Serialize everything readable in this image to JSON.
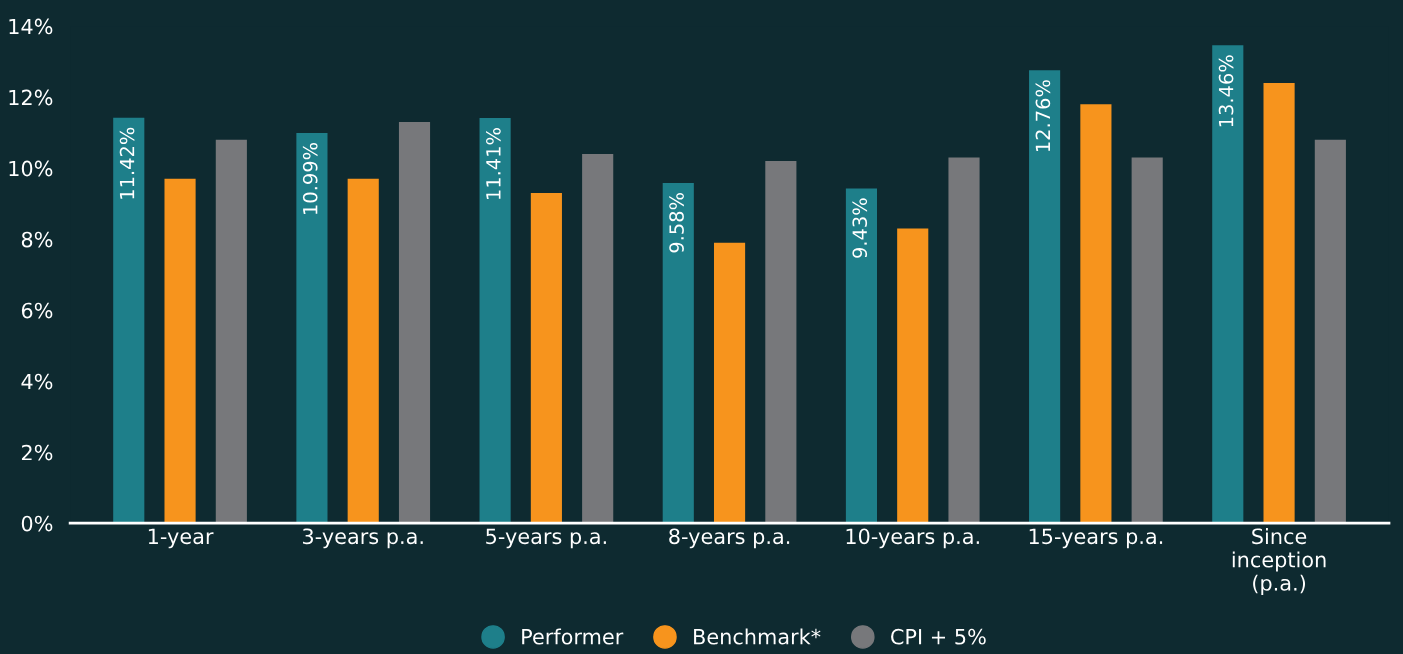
{
  "chart_data": {
    "type": "bar",
    "categories": [
      "1-year",
      "3-years p.a.",
      "5-years p.a.",
      "8-years p.a.",
      "10-years p.a.",
      "15-years p.a.",
      "Since\ninception\n(p.a.)"
    ],
    "series": [
      {
        "name": "Performer",
        "color": "#1e7f8a",
        "values": [
          11.42,
          10.99,
          11.41,
          9.58,
          9.43,
          12.76,
          13.46
        ],
        "value_labels": [
          "11.42%",
          "10.99%",
          "11.41%",
          "9.58%",
          "9.43%",
          "12.76%",
          "13.46%"
        ]
      },
      {
        "name": "Benchmark*",
        "color": "#f7941d",
        "values": [
          9.7,
          9.7,
          9.3,
          7.9,
          8.3,
          11.8,
          12.4
        ]
      },
      {
        "name": "CPI + 5%",
        "color": "#77787b",
        "values": [
          10.8,
          11.3,
          10.4,
          10.2,
          10.3,
          10.3,
          10.8
        ]
      }
    ],
    "ylim": [
      0,
      14
    ],
    "yticks": [
      {
        "value": 0,
        "label": "0%"
      },
      {
        "value": 2,
        "label": "2%"
      },
      {
        "value": 4,
        "label": "4%"
      },
      {
        "value": 6,
        "label": "6%"
      },
      {
        "value": 8,
        "label": "8%"
      },
      {
        "value": 10,
        "label": "10%"
      },
      {
        "value": 12,
        "label": "12%"
      },
      {
        "value": 14,
        "label": "14%"
      }
    ],
    "grid": false,
    "legend": "bottom"
  }
}
